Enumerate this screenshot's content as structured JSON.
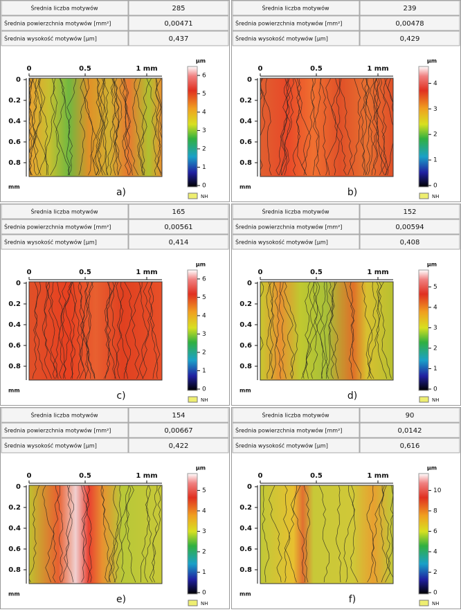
{
  "panels": [
    {
      "table": [
        [
          "Średnia liczba motywów",
          "285"
        ],
        [
          "Średnia powierzchnia motywów [mm²]",
          "0,00471"
        ],
        [
          "Średnia wysokość motywów [µm]",
          "0,437"
        ]
      ],
      "x_ticks": [
        "0",
        "0.5",
        "1 mm"
      ],
      "y_ticks": [
        "0",
        "0.2",
        "0.4",
        "0.6",
        "0.8"
      ],
      "axis_unit": "mm",
      "colorbar_unit": "µm",
      "colorbar_ticks": [
        "0",
        "1",
        "2",
        "3",
        "4",
        "5",
        "6"
      ],
      "legend": "NH",
      "label": "a)"
    },
    {
      "table": [
        [
          "Średnia liczba motywów",
          "239"
        ],
        [
          "Średnia powierzchnia motywów [mm²]",
          "0,00478"
        ],
        [
          "Średnia wysokość motywów [µm]",
          "0,429"
        ]
      ],
      "x_ticks": [
        "0",
        "0.5",
        "1 mm"
      ],
      "y_ticks": [
        "0",
        "0.2",
        "0.4",
        "0.6",
        "0.8"
      ],
      "axis_unit": "mm",
      "colorbar_unit": "µm",
      "colorbar_ticks": [
        "0",
        "1",
        "2",
        "3",
        "4"
      ],
      "legend": "NH",
      "label": "b)"
    },
    {
      "table": [
        [
          "Średnia liczba motywów",
          "165"
        ],
        [
          "Średnia powierzchnia motywów [mm²]",
          "0,00561"
        ],
        [
          "Średnia wysokość motywów [µm]",
          "0,414"
        ]
      ],
      "x_ticks": [
        "0",
        "0.5",
        "1 mm"
      ],
      "y_ticks": [
        "0",
        "0.2",
        "0.4",
        "0.6",
        "0.8"
      ],
      "axis_unit": "mm",
      "colorbar_unit": "µm",
      "colorbar_ticks": [
        "0",
        "1",
        "2",
        "3",
        "4",
        "5",
        "6"
      ],
      "legend": "NH",
      "label": "c)"
    },
    {
      "table": [
        [
          "Średnia liczba motywów",
          "152"
        ],
        [
          "Średnia powierzchnia motywów [mm²]",
          "0,00594"
        ],
        [
          "Średnia wysokość motywów [µm]",
          "0,408"
        ]
      ],
      "x_ticks": [
        "0",
        "0.5",
        "1 mm"
      ],
      "y_ticks": [
        "0",
        "0.2",
        "0.4",
        "0.6",
        "0.8"
      ],
      "axis_unit": "mm",
      "colorbar_unit": "µm",
      "colorbar_ticks": [
        "0",
        "1",
        "2",
        "3",
        "4",
        "5"
      ],
      "legend": "NH",
      "label": "d)"
    },
    {
      "table": [
        [
          "Średnia liczba motywów",
          "154"
        ],
        [
          "Średnia powierzchnia motywów [mm²]",
          "0,00667"
        ],
        [
          "Średnia wysokość motywów [µm]",
          "0,422"
        ]
      ],
      "x_ticks": [
        "0",
        "0.5",
        "1 mm"
      ],
      "y_ticks": [
        "0",
        "0.2",
        "0.4",
        "0.6",
        "0.8"
      ],
      "axis_unit": "mm",
      "colorbar_unit": "µm",
      "colorbar_ticks": [
        "0",
        "1",
        "2",
        "3",
        "4",
        "5"
      ],
      "legend": "NH",
      "label": "e)"
    },
    {
      "table": [
        [
          "Średnia liczba motywów",
          "90"
        ],
        [
          "Średnia powierzchnia motywów [mm²]",
          "0,0142"
        ],
        [
          "Średnia wysokość motywów [µm]",
          "0,616"
        ]
      ],
      "x_ticks": [
        "0",
        "0.5",
        "1 mm"
      ],
      "y_ticks": [
        "0",
        "0.2",
        "0.4",
        "0.6",
        "0.8"
      ],
      "axis_unit": "mm",
      "colorbar_unit": "µm",
      "colorbar_ticks": [
        "0",
        "2",
        "4",
        "6",
        "8",
        "10"
      ],
      "legend": "NH",
      "label": "f)"
    }
  ]
}
